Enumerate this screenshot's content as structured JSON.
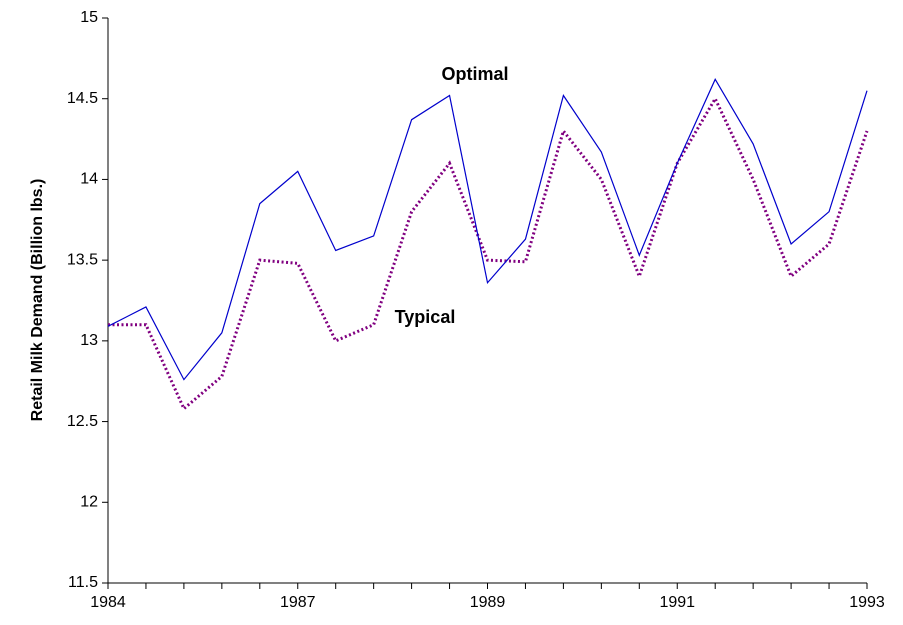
{
  "chart_data": {
    "type": "line",
    "y_label": "Retail Milk Demand (Billion lbs.)",
    "categories": [
      "1984",
      null,
      null,
      null,
      null,
      "1987",
      null,
      null,
      null,
      null,
      "1989",
      null,
      null,
      null,
      null,
      "1991",
      null,
      null,
      null,
      null,
      "1993"
    ],
    "series": [
      {
        "name": "Optimal",
        "color": "#0000cc",
        "values": [
          13.09,
          13.21,
          12.76,
          13.05,
          13.85,
          14.05,
          13.56,
          13.65,
          14.37,
          14.52,
          13.36,
          13.63,
          14.52,
          14.17,
          13.53,
          14.1,
          14.62,
          14.22,
          13.6,
          13.8,
          14.55
        ]
      },
      {
        "name": "Typical",
        "color": "#800080",
        "values": [
          13.1,
          13.1,
          12.58,
          12.78,
          13.5,
          13.48,
          13.0,
          13.1,
          13.8,
          14.1,
          13.5,
          13.49,
          14.3,
          14.0,
          13.4,
          14.1,
          14.5,
          14.0,
          13.4,
          13.6,
          14.3
        ]
      }
    ],
    "ylim": [
      11.5,
      15
    ],
    "yticks": [
      11.5,
      12,
      12.5,
      13,
      13.5,
      14,
      14.5,
      15
    ]
  }
}
